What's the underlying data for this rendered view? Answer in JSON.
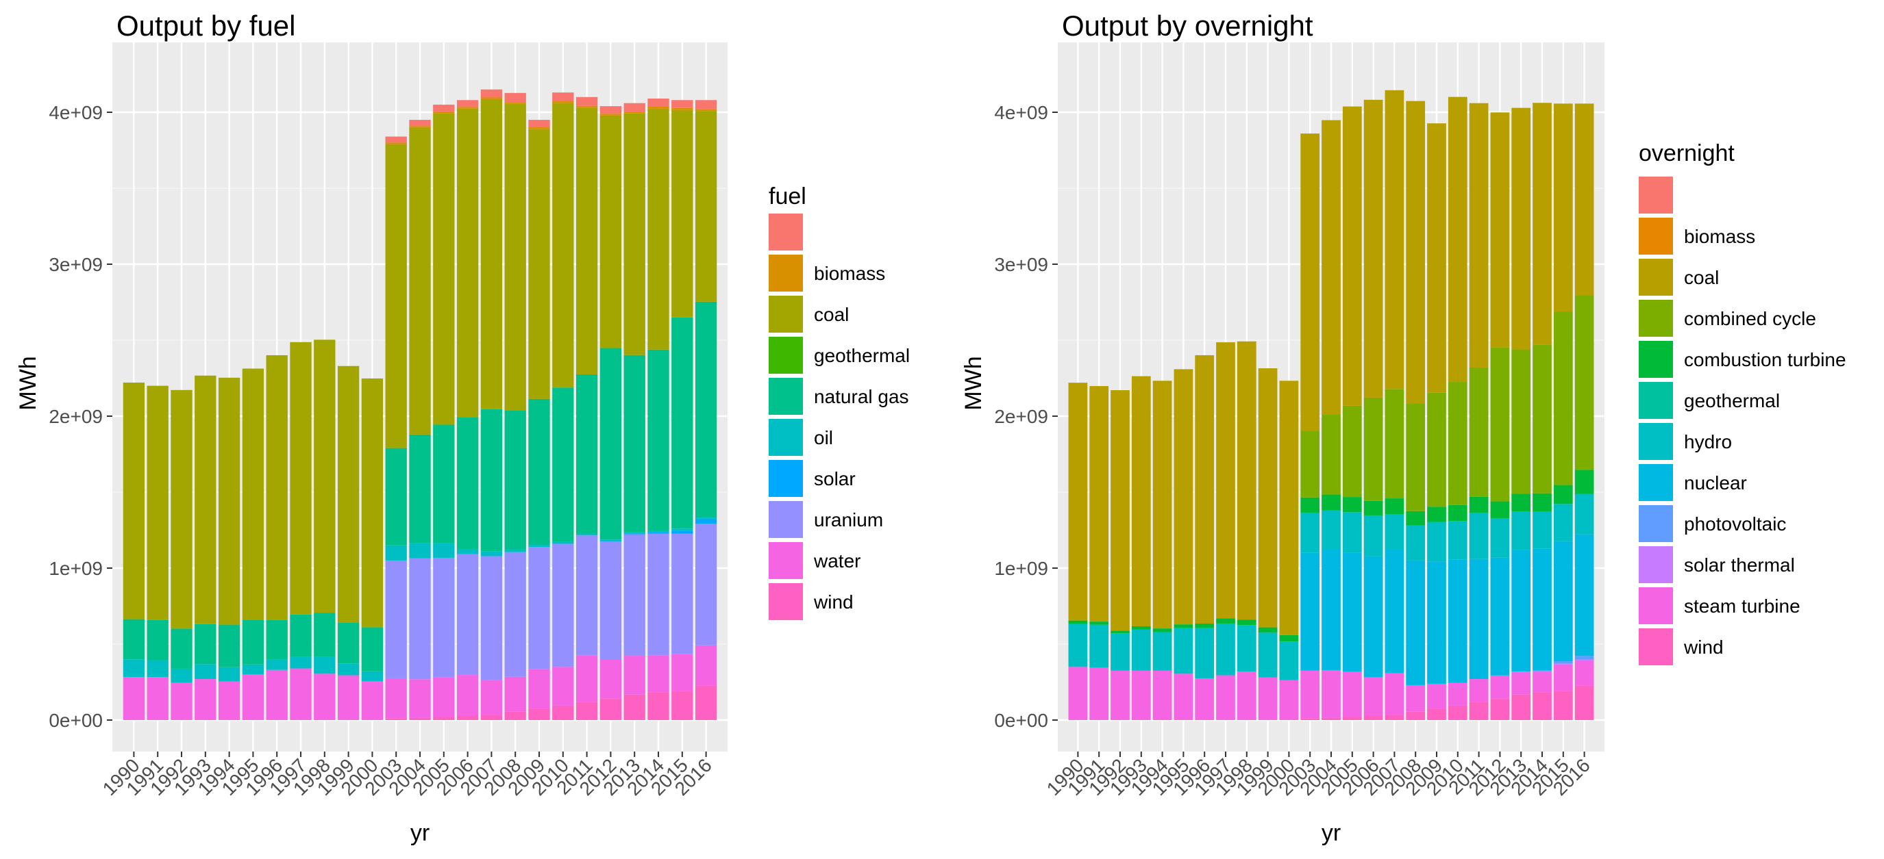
{
  "chart_data": [
    {
      "type": "bar",
      "stacked": true,
      "title": "Output by fuel",
      "xlabel": "yr",
      "ylabel": "MWh",
      "ylim": [
        0,
        4300000000
      ],
      "yticks": [
        0,
        1000000000,
        2000000000,
        3000000000,
        4000000000
      ],
      "ytick_labels": [
        "0e+00",
        "1e+09",
        "2e+09",
        "3e+09",
        "4e+09"
      ],
      "grid": true,
      "legend_title": "fuel",
      "legend_position": "right",
      "categories": [
        "1990",
        "1991",
        "1992",
        "1993",
        "1994",
        "1995",
        "1996",
        "1997",
        "1998",
        "1999",
        "2000",
        "2003",
        "2004",
        "2005",
        "2006",
        "2007",
        "2008",
        "2009",
        "2010",
        "2011",
        "2012",
        "2013",
        "2014",
        "2015",
        "2016"
      ],
      "series": [
        {
          "name": "wind",
          "color": "#FF61C3",
          "values": [
            0,
            0,
            0,
            0,
            0,
            0,
            0,
            0,
            0,
            0,
            0,
            10000000,
            14000000,
            18000000,
            27000000,
            34000000,
            55000000,
            74000000,
            95000000,
            120000000,
            141000000,
            168000000,
            182000000,
            191000000,
            227000000
          ]
        },
        {
          "name": "water",
          "color": "#F564E3",
          "values": [
            283000000,
            283000000,
            246000000,
            270000000,
            254000000,
            300000000,
            330000000,
            340000000,
            305000000,
            295000000,
            255000000,
            265000000,
            255000000,
            265000000,
            270000000,
            230000000,
            230000000,
            260000000,
            255000000,
            305000000,
            260000000,
            255000000,
            245000000,
            245000000,
            265000000
          ]
        },
        {
          "name": "uranium",
          "color": "#9590FF",
          "values": [
            0,
            0,
            0,
            0,
            0,
            0,
            0,
            0,
            0,
            0,
            0,
            775000000,
            795000000,
            785000000,
            795000000,
            815000000,
            820000000,
            805000000,
            810000000,
            790000000,
            775000000,
            800000000,
            800000000,
            790000000,
            800000000
          ]
        },
        {
          "name": "solar",
          "color": "#00A9FF",
          "values": [
            0,
            0,
            0,
            0,
            0,
            0,
            0,
            0,
            0,
            0,
            0,
            0,
            0,
            0,
            0,
            0,
            0,
            0,
            0,
            0,
            2000000,
            4000000,
            10000000,
            21000000,
            30000000
          ]
        },
        {
          "name": "oil",
          "color": "#00BFC4",
          "values": [
            117000000,
            111000000,
            92000000,
            98000000,
            94000000,
            66000000,
            68000000,
            75000000,
            110000000,
            78000000,
            66000000,
            100000000,
            100000000,
            96000000,
            32000000,
            32000000,
            19000000,
            14000000,
            13000000,
            10000000,
            10000000,
            10000000,
            11000000,
            13000000,
            11000000
          ]
        },
        {
          "name": "natural gas",
          "color": "#00C08B",
          "values": [
            264000000,
            264000000,
            264000000,
            264000000,
            280000000,
            295000000,
            260000000,
            280000000,
            290000000,
            270000000,
            290000000,
            640000000,
            715000000,
            780000000,
            870000000,
            935000000,
            915000000,
            960000000,
            1015000000,
            1050000000,
            1260000000,
            1165000000,
            1190000000,
            1390000000,
            1420000000
          ]
        },
        {
          "name": "geothermal",
          "color": "#3DB700",
          "values": [
            0,
            0,
            0,
            0,
            0,
            0,
            0,
            0,
            0,
            0,
            0,
            0,
            0,
            0,
            0,
            0,
            0,
            0,
            0,
            0,
            0,
            0,
            0,
            0,
            0
          ]
        },
        {
          "name": "coal",
          "color": "#A3A500",
          "values": [
            1557000000,
            1542000000,
            1570000000,
            1635000000,
            1625000000,
            1652000000,
            1743000000,
            1792000000,
            1798000000,
            1687000000,
            1637000000,
            2000000000,
            2020000000,
            2050000000,
            2030000000,
            2040000000,
            2016000000,
            1776000000,
            1872000000,
            1755000000,
            1530000000,
            1590000000,
            1585000000,
            1365000000,
            1255000000
          ]
        },
        {
          "name": "biomass",
          "color": "#D89000",
          "values": [
            0,
            0,
            0,
            0,
            0,
            0,
            0,
            0,
            0,
            0,
            0,
            10000000,
            10000000,
            11000000,
            11000000,
            11000000,
            12000000,
            12000000,
            12000000,
            12000000,
            12000000,
            12000000,
            13000000,
            13000000,
            13000000
          ]
        },
        {
          "name": "",
          "color": "#F8766D",
          "values": [
            0,
            0,
            0,
            0,
            0,
            0,
            0,
            0,
            0,
            0,
            0,
            40000000,
            41000000,
            45000000,
            45000000,
            53000000,
            60000000,
            49000000,
            58000000,
            58000000,
            50000000,
            56000000,
            54000000,
            52000000,
            59000000
          ]
        }
      ]
    },
    {
      "type": "bar",
      "stacked": true,
      "title": "Output by overnight",
      "xlabel": "yr",
      "ylabel": "MWh",
      "ylim": [
        0,
        4300000000
      ],
      "yticks": [
        0,
        1000000000,
        2000000000,
        3000000000,
        4000000000
      ],
      "ytick_labels": [
        "0e+00",
        "1e+09",
        "2e+09",
        "3e+09",
        "4e+09"
      ],
      "grid": true,
      "legend_title": "overnight",
      "legend_position": "right",
      "categories": [
        "1990",
        "1991",
        "1992",
        "1993",
        "1994",
        "1995",
        "1996",
        "1997",
        "1998",
        "1999",
        "2000",
        "2003",
        "2004",
        "2005",
        "2006",
        "2007",
        "2008",
        "2009",
        "2010",
        "2011",
        "2012",
        "2013",
        "2014",
        "2015",
        "2016"
      ],
      "series": [
        {
          "name": "wind",
          "color": "#FF61C3",
          "values": [
            0,
            0,
            0,
            0,
            0,
            0,
            0,
            0,
            0,
            0,
            0,
            10000000,
            14000000,
            18000000,
            27000000,
            34000000,
            55000000,
            74000000,
            95000000,
            120000000,
            141000000,
            168000000,
            182000000,
            191000000,
            227000000
          ]
        },
        {
          "name": "steam turbine",
          "color": "#F564E3",
          "values": [
            350000000,
            345000000,
            325000000,
            325000000,
            325000000,
            305000000,
            275000000,
            295000000,
            320000000,
            280000000,
            262000000,
            315000000,
            315000000,
            300000000,
            255000000,
            275000000,
            175000000,
            165000000,
            150000000,
            150000000,
            150000000,
            145000000,
            135000000,
            175000000,
            165000000
          ]
        },
        {
          "name": "solar thermal",
          "color": "#C77CFF",
          "values": [
            0,
            0,
            0,
            0,
            0,
            0,
            0,
            0,
            0,
            0,
            0,
            0,
            0,
            0,
            0,
            0,
            0,
            0,
            0,
            0,
            2000000,
            4000000,
            5000000,
            6000000,
            7000000
          ]
        },
        {
          "name": "photovoltaic",
          "color": "#619CFF",
          "values": [
            0,
            0,
            0,
            0,
            0,
            0,
            0,
            0,
            0,
            0,
            0,
            0,
            0,
            0,
            0,
            0,
            0,
            0,
            0,
            0,
            1000000,
            2000000,
            5000000,
            15000000,
            23000000
          ]
        },
        {
          "name": "nuclear",
          "color": "#00B9E3",
          "values": [
            0,
            0,
            0,
            0,
            0,
            0,
            0,
            0,
            0,
            0,
            0,
            775000000,
            795000000,
            785000000,
            795000000,
            815000000,
            820000000,
            805000000,
            810000000,
            790000000,
            775000000,
            800000000,
            800000000,
            790000000,
            800000000
          ]
        },
        {
          "name": "hydro",
          "color": "#00BFC4",
          "values": [
            283000000,
            283000000,
            246000000,
            270000000,
            254000000,
            300000000,
            330000000,
            340000000,
            305000000,
            295000000,
            255000000,
            265000000,
            255000000,
            265000000,
            270000000,
            230000000,
            230000000,
            260000000,
            255000000,
            305000000,
            260000000,
            255000000,
            245000000,
            245000000,
            265000000
          ]
        },
        {
          "name": "geothermal",
          "color": "#00C19F",
          "values": [
            0,
            0,
            0,
            0,
            0,
            0,
            0,
            0,
            0,
            0,
            0,
            0,
            0,
            0,
            0,
            0,
            0,
            0,
            0,
            0,
            0,
            0,
            0,
            0,
            0
          ]
        },
        {
          "name": "combustion turbine",
          "color": "#00BA38",
          "values": [
            22000000,
            20000000,
            18000000,
            22000000,
            24000000,
            25000000,
            30000000,
            35000000,
            35000000,
            35000000,
            42000000,
            100000000,
            105000000,
            100000000,
            95000000,
            105000000,
            95000000,
            100000000,
            105000000,
            105000000,
            110000000,
            115000000,
            120000000,
            125000000,
            160000000
          ]
        },
        {
          "name": "combined cycle",
          "color": "#7CAE00",
          "values": [
            0,
            0,
            0,
            0,
            0,
            0,
            0,
            0,
            0,
            0,
            0,
            440000000,
            525000000,
            600000000,
            680000000,
            720000000,
            710000000,
            750000000,
            810000000,
            850000000,
            1015000000,
            950000000,
            980000000,
            1140000000,
            1150000000
          ]
        },
        {
          "name": "coal",
          "color": "#B79F00",
          "values": [
            1565000000,
            1550000000,
            1582000000,
            1646000000,
            1630000000,
            1679000000,
            1766000000,
            1816000000,
            1832000000,
            1705000000,
            1674000000,
            1955000000,
            1939000000,
            1970000000,
            1960000000,
            1966000000,
            1989000000,
            1773000000,
            1876000000,
            1740000000,
            1545000000,
            1590000000,
            1590000000,
            1370000000,
            1260000000
          ]
        },
        {
          "name": "biomass",
          "color": "#E58700",
          "values": [
            0,
            0,
            0,
            0,
            0,
            0,
            0,
            0,
            0,
            0,
            0,
            0,
            0,
            0,
            0,
            0,
            0,
            0,
            0,
            0,
            0,
            0,
            0,
            0,
            0
          ]
        },
        {
          "name": "",
          "color": "#F8766D",
          "values": [
            0,
            0,
            0,
            0,
            0,
            0,
            0,
            0,
            0,
            0,
            0,
            0,
            0,
            0,
            0,
            0,
            0,
            0,
            0,
            0,
            0,
            0,
            0,
            0,
            0
          ]
        }
      ]
    }
  ]
}
